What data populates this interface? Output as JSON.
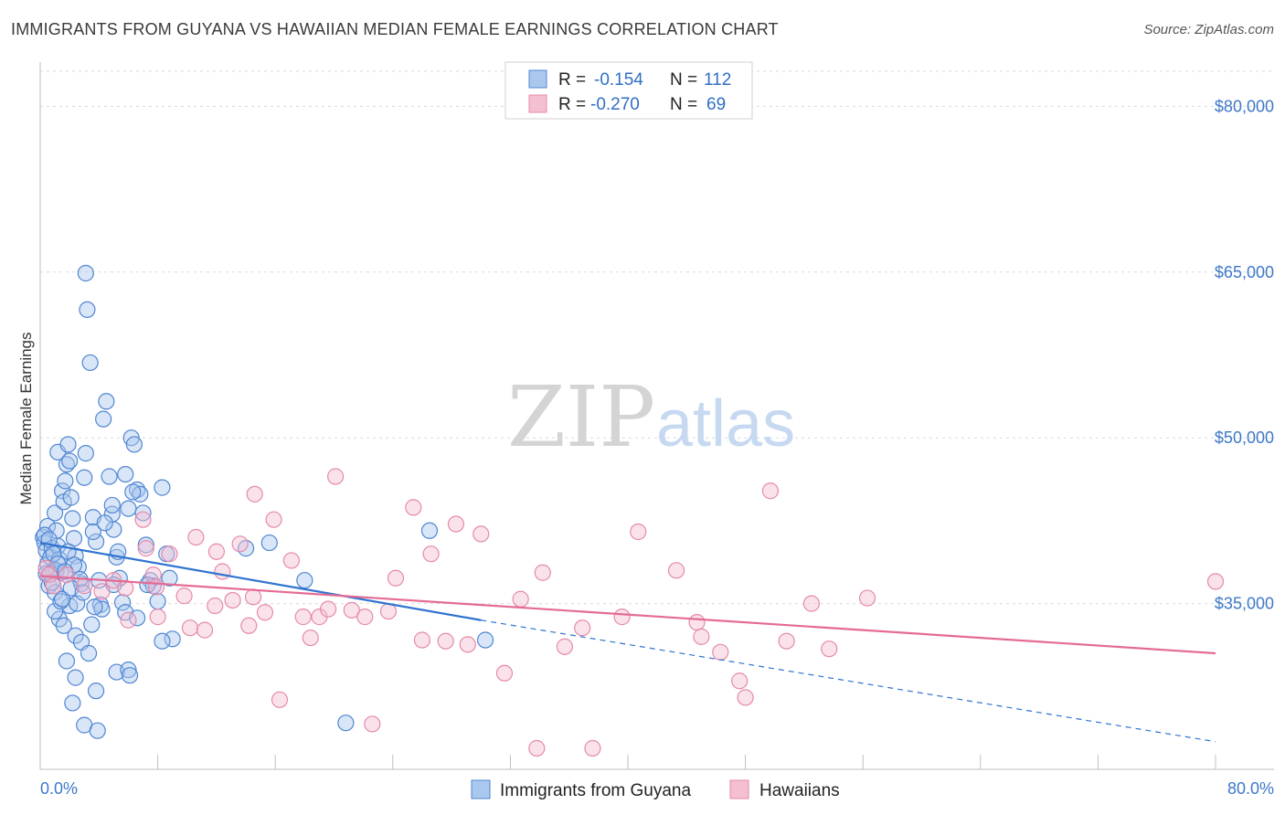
{
  "title": "IMMIGRANTS FROM GUYANA VS HAWAIIAN MEDIAN FEMALE EARNINGS CORRELATION CHART",
  "source": "Source: ZipAtlas.com",
  "watermark": {
    "zip": "ZIP",
    "atlas": "atlas"
  },
  "colors": {
    "blue_fill": "#aac8ee",
    "blue_stroke": "#4f86d3",
    "blue_line": "#2f73d0",
    "pink_fill": "#f5bfd2",
    "pink_stroke": "#e58aab",
    "pink_line": "#e46b94",
    "grid": "#d9d9d9",
    "axis_text": "#3d78c8"
  },
  "chart_data": {
    "type": "scatter",
    "title": "IMMIGRANTS FROM GUYANA VS HAWAIIAN MEDIAN FEMALE EARNINGS CORRELATION CHART",
    "xlabel": "",
    "ylabel": "Median Female Earnings",
    "xlim": [
      0,
      80
    ],
    "ylim": [
      20000,
      84000
    ],
    "x_tick_labels": [
      "0.0%",
      "80.0%"
    ],
    "y_ticks": [
      35000,
      50000,
      65000,
      80000
    ],
    "y_tick_labels": [
      "$35,000",
      "$50,000",
      "$65,000",
      "$80,000"
    ],
    "legend": {
      "entries": [
        {
          "r_label": "R =",
          "r": "-0.154",
          "n_label": "N =",
          "n": "112"
        },
        {
          "r_label": "R =",
          "r": "-0.270",
          "n_label": "N =",
          "n": "69"
        }
      ]
    },
    "series": [
      {
        "name": "Immigrants from Guyana",
        "color": "blue",
        "trend": {
          "x0": 0,
          "y0": 40500,
          "x1": 30,
          "y1": 33500,
          "dash_to_x": 80,
          "dash_to_y": 22500
        },
        "points": [
          [
            0.2,
            41000
          ],
          [
            0.3,
            40500
          ],
          [
            0.4,
            39800
          ],
          [
            0.5,
            38600
          ],
          [
            0.4,
            37700
          ],
          [
            0.6,
            36600
          ],
          [
            0.8,
            40000
          ],
          [
            0.9,
            38000
          ],
          [
            0.5,
            42000
          ],
          [
            0.7,
            39200
          ],
          [
            1.0,
            43200
          ],
          [
            1.1,
            41600
          ],
          [
            1.2,
            40200
          ],
          [
            1.3,
            39000
          ],
          [
            1.4,
            37800
          ],
          [
            1.0,
            36000
          ],
          [
            1.5,
            45200
          ],
          [
            1.6,
            44200
          ],
          [
            1.7,
            46100
          ],
          [
            1.8,
            47600
          ],
          [
            1.2,
            48700
          ],
          [
            1.9,
            49400
          ],
          [
            2.0,
            47900
          ],
          [
            2.1,
            44600
          ],
          [
            2.2,
            42700
          ],
          [
            2.3,
            40900
          ],
          [
            2.4,
            39300
          ],
          [
            2.6,
            38300
          ],
          [
            2.8,
            36800
          ],
          [
            3.0,
            46400
          ],
          [
            3.1,
            48600
          ],
          [
            3.2,
            61600
          ],
          [
            3.4,
            56800
          ],
          [
            3.6,
            42800
          ],
          [
            3.8,
            40600
          ],
          [
            4.0,
            37100
          ],
          [
            4.1,
            34900
          ],
          [
            4.3,
            51700
          ],
          [
            4.5,
            53300
          ],
          [
            4.7,
            46500
          ],
          [
            4.9,
            43100
          ],
          [
            5.0,
            41700
          ],
          [
            5.2,
            39200
          ],
          [
            5.4,
            37300
          ],
          [
            5.6,
            35100
          ],
          [
            5.8,
            34200
          ],
          [
            6.0,
            43600
          ],
          [
            6.2,
            50000
          ],
          [
            6.4,
            49400
          ],
          [
            6.6,
            45300
          ],
          [
            6.8,
            44900
          ],
          [
            7.0,
            43200
          ],
          [
            7.2,
            40300
          ],
          [
            7.5,
            37100
          ],
          [
            7.7,
            36600
          ],
          [
            8.0,
            35200
          ],
          [
            8.3,
            45500
          ],
          [
            8.6,
            39500
          ],
          [
            8.8,
            37300
          ],
          [
            9.0,
            31800
          ],
          [
            3.1,
            64900
          ],
          [
            2.0,
            34800
          ],
          [
            1.3,
            33600
          ],
          [
            1.6,
            33000
          ],
          [
            2.4,
            32100
          ],
          [
            2.8,
            31500
          ],
          [
            3.3,
            30500
          ],
          [
            1.8,
            29800
          ],
          [
            2.4,
            28300
          ],
          [
            2.2,
            26000
          ],
          [
            3.8,
            27100
          ],
          [
            5.2,
            28800
          ],
          [
            3.0,
            24000
          ],
          [
            3.9,
            23500
          ],
          [
            6.0,
            29000
          ],
          [
            6.1,
            28500
          ],
          [
            6.6,
            33700
          ],
          [
            7.3,
            36700
          ],
          [
            1.0,
            34300
          ],
          [
            1.4,
            35200
          ],
          [
            2.5,
            35000
          ],
          [
            3.5,
            33100
          ],
          [
            4.2,
            34500
          ],
          [
            5.0,
            36700
          ],
          [
            5.3,
            39700
          ],
          [
            0.8,
            36900
          ],
          [
            1.1,
            38000
          ],
          [
            0.3,
            41200
          ],
          [
            0.6,
            40800
          ],
          [
            0.9,
            39500
          ],
          [
            1.9,
            39700
          ],
          [
            2.3,
            38500
          ],
          [
            2.7,
            37200
          ],
          [
            3.6,
            41500
          ],
          [
            4.4,
            42300
          ],
          [
            4.9,
            43900
          ],
          [
            5.8,
            46700
          ],
          [
            6.3,
            45100
          ],
          [
            1.5,
            35400
          ],
          [
            0.7,
            37700
          ],
          [
            1.2,
            38600
          ],
          [
            1.7,
            37900
          ],
          [
            2.1,
            36400
          ],
          [
            2.9,
            36000
          ],
          [
            3.7,
            34700
          ],
          [
            14.0,
            40000
          ],
          [
            15.6,
            40500
          ],
          [
            18.0,
            37100
          ],
          [
            26.5,
            41600
          ],
          [
            30.3,
            31700
          ],
          [
            20.8,
            24200
          ],
          [
            8.3,
            31600
          ]
        ]
      },
      {
        "name": "Hawaiians",
        "color": "pink",
        "trend": {
          "x0": 0,
          "y0": 37500,
          "x1": 80,
          "y1": 30500
        },
        "points": [
          [
            0.4,
            38200
          ],
          [
            0.6,
            37600
          ],
          [
            0.9,
            36600
          ],
          [
            1.8,
            37600
          ],
          [
            3.0,
            36600
          ],
          [
            4.2,
            36100
          ],
          [
            5.0,
            37100
          ],
          [
            5.8,
            36400
          ],
          [
            7.0,
            42600
          ],
          [
            7.2,
            40000
          ],
          [
            7.7,
            37600
          ],
          [
            8.0,
            33800
          ],
          [
            8.8,
            39500
          ],
          [
            9.8,
            35700
          ],
          [
            10.2,
            32800
          ],
          [
            10.6,
            41000
          ],
          [
            11.2,
            32600
          ],
          [
            11.9,
            34800
          ],
          [
            12.4,
            37900
          ],
          [
            13.1,
            35300
          ],
          [
            13.6,
            40400
          ],
          [
            14.2,
            33000
          ],
          [
            14.6,
            44900
          ],
          [
            15.3,
            34200
          ],
          [
            15.9,
            42600
          ],
          [
            16.3,
            26300
          ],
          [
            17.1,
            38900
          ],
          [
            17.9,
            33800
          ],
          [
            18.4,
            31900
          ],
          [
            19.0,
            33800
          ],
          [
            19.6,
            34500
          ],
          [
            20.1,
            46500
          ],
          [
            21.2,
            34400
          ],
          [
            22.1,
            33800
          ],
          [
            22.6,
            24100
          ],
          [
            23.7,
            34300
          ],
          [
            24.2,
            37300
          ],
          [
            25.4,
            43700
          ],
          [
            26.0,
            31700
          ],
          [
            26.6,
            39500
          ],
          [
            27.6,
            31600
          ],
          [
            28.3,
            42200
          ],
          [
            29.1,
            31300
          ],
          [
            30.0,
            41300
          ],
          [
            31.6,
            28700
          ],
          [
            32.7,
            35400
          ],
          [
            33.8,
            21900
          ],
          [
            34.2,
            37800
          ],
          [
            35.7,
            31100
          ],
          [
            36.9,
            32800
          ],
          [
            37.6,
            21900
          ],
          [
            39.6,
            33800
          ],
          [
            40.7,
            41500
          ],
          [
            43.3,
            38000
          ],
          [
            44.7,
            33300
          ],
          [
            45.0,
            32000
          ],
          [
            46.3,
            30600
          ],
          [
            47.6,
            28000
          ],
          [
            48.0,
            26500
          ],
          [
            49.7,
            45200
          ],
          [
            50.8,
            31600
          ],
          [
            52.5,
            35000
          ],
          [
            53.7,
            30900
          ],
          [
            56.3,
            35500
          ],
          [
            80.0,
            37000
          ],
          [
            6.0,
            33500
          ],
          [
            7.9,
            36500
          ],
          [
            12.0,
            39700
          ],
          [
            14.5,
            35600
          ]
        ]
      }
    ]
  },
  "bottom_legend": [
    "Immigrants from Guyana",
    "Hawaiians"
  ]
}
